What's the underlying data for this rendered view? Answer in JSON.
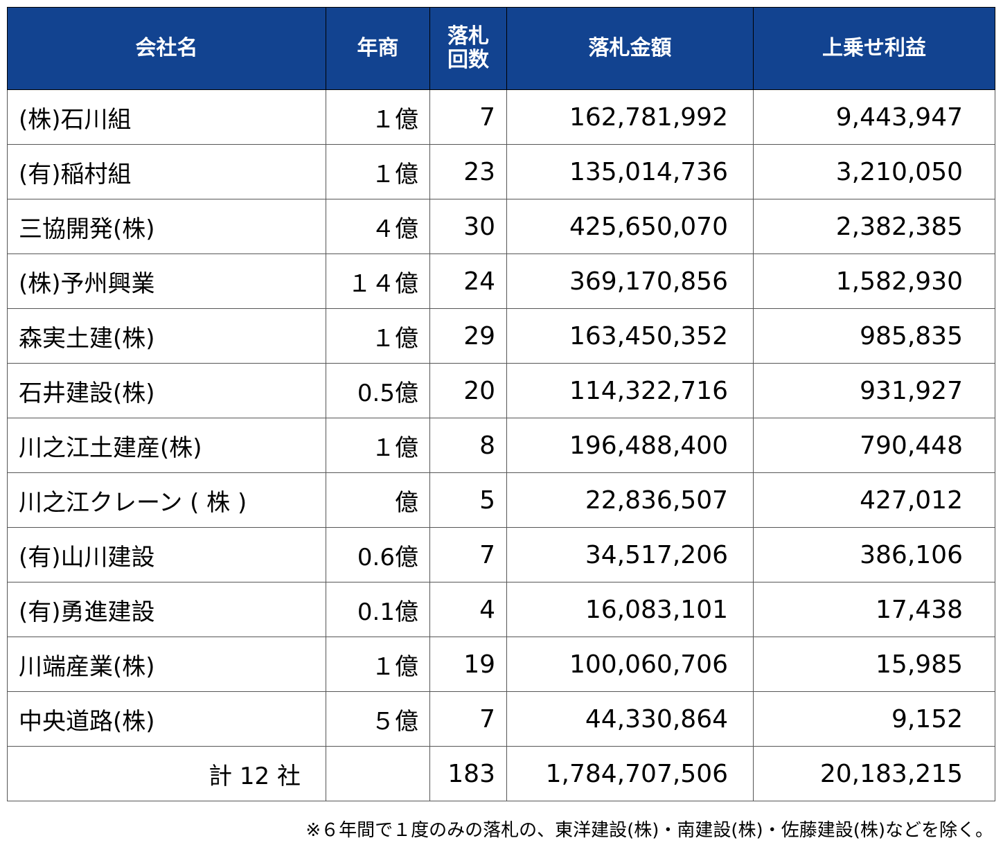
{
  "table": {
    "headers": [
      "会社名",
      "年商",
      "落札\n回数",
      "落札金額",
      "上乗せ利益"
    ],
    "rows": [
      {
        "company": "(株)石川組",
        "revenue": "１億",
        "wins": "7",
        "amount": "162,781,992",
        "profit": "9,443,947"
      },
      {
        "company": "(有)稲村組",
        "revenue": "１億",
        "wins": "23",
        "amount": "135,014,736",
        "profit": "3,210,050"
      },
      {
        "company": "三協開発(株)",
        "revenue": "４億",
        "wins": "30",
        "amount": "425,650,070",
        "profit": "2,382,385"
      },
      {
        "company": "(株)予州興業",
        "revenue": "１４億",
        "wins": "24",
        "amount": "369,170,856",
        "profit": "1,582,930"
      },
      {
        "company": "森実土建(株)",
        "revenue": "１億",
        "wins": "29",
        "amount": "163,450,352",
        "profit": "985,835"
      },
      {
        "company": "石井建設(株)",
        "revenue": "0.5億",
        "wins": "20",
        "amount": "114,322,716",
        "profit": "931,927"
      },
      {
        "company": "川之江土建産(株)",
        "revenue": "１億",
        "wins": "8",
        "amount": "196,488,400",
        "profit": "790,448"
      },
      {
        "company": "川之江クレーン ( 株 )",
        "revenue": "億",
        "wins": "5",
        "amount": "22,836,507",
        "profit": "427,012"
      },
      {
        "company": "(有)山川建設",
        "revenue": "0.6億",
        "wins": "7",
        "amount": "34,517,206",
        "profit": "386,106"
      },
      {
        "company": "(有)勇進建設",
        "revenue": "0.1億",
        "wins": "4",
        "amount": "16,083,101",
        "profit": "17,438"
      },
      {
        "company": "川端産業(株)",
        "revenue": "１億",
        "wins": "19",
        "amount": "100,060,706",
        "profit": "15,985"
      },
      {
        "company": "中央道路(株)",
        "revenue": "５億",
        "wins": "7",
        "amount": "44,330,864",
        "profit": "9,152"
      }
    ],
    "total": {
      "label": "計 12 社",
      "revenue": "",
      "wins": "183",
      "amount": "1,784,707,506",
      "profit": "20,183,215"
    }
  },
  "note": "※６年間で１度のみの落札の、東洋建設(株)・南建設(株)・佐藤建設(株)などを除く。",
  "colors": {
    "header_bg": "#124390",
    "header_text": "#ffffff"
  }
}
